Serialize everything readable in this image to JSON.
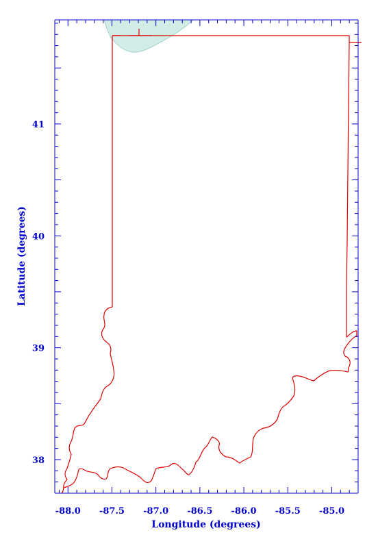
{
  "map": {
    "xlabel": "Longitude (degrees)",
    "ylabel": "Latitude (degrees)",
    "xlim": [
      -88.15,
      -84.7
    ],
    "ylim": [
      37.7,
      41.93
    ],
    "x_ticks": [
      {
        "value": -88.0,
        "label": "-88.0"
      },
      {
        "value": -87.5,
        "label": "-87.5"
      },
      {
        "value": -87.0,
        "label": "-87.0"
      },
      {
        "value": -86.5,
        "label": "-86.5"
      },
      {
        "value": -86.0,
        "label": "-86.0"
      },
      {
        "value": -85.5,
        "label": "-85.5"
      },
      {
        "value": -85.0,
        "label": "-85.0"
      }
    ],
    "y_ticks": [
      {
        "value": 38,
        "label": "38"
      },
      {
        "value": 39,
        "label": "39"
      },
      {
        "value": 40,
        "label": "40"
      },
      {
        "value": 41,
        "label": "41"
      }
    ],
    "colors": {
      "axis": "#0000cc",
      "border": "#dd0000",
      "lake_fill": "#d3ece8",
      "lake_edge": "#9fd2cb"
    },
    "features": [
      "Indiana state boundary",
      "Lake Michigan (southern tip)"
    ]
  }
}
